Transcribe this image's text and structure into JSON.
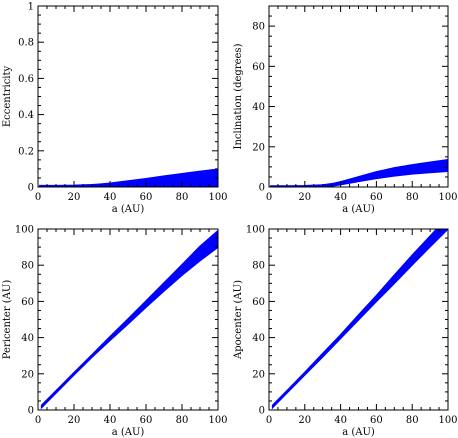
{
  "colors": {
    "band": "#0000ff",
    "axis": "#000000",
    "background": "#ffffff"
  },
  "chart_data": [
    {
      "type": "area",
      "xlabel": "a (AU)",
      "ylabel": "Eccentricity",
      "xlim": [
        0,
        100
      ],
      "ylim": [
        0,
        1
      ],
      "xticks": [
        0,
        20,
        40,
        60,
        80,
        100
      ],
      "yticks": [
        0,
        0.2,
        0.4,
        0.6,
        0.8,
        1
      ],
      "ytick_labels": [
        "0",
        "0.2",
        "0.4",
        "0.6",
        "0.8",
        "1"
      ],
      "x": [
        1,
        10,
        20,
        30,
        35,
        40,
        50,
        60,
        70,
        80,
        90,
        100
      ],
      "upper": [
        0.008,
        0.008,
        0.009,
        0.012,
        0.016,
        0.021,
        0.033,
        0.046,
        0.06,
        0.073,
        0.086,
        0.098
      ],
      "lower": [
        0,
        0,
        0,
        0,
        0,
        0,
        0,
        0,
        0,
        0,
        0,
        0
      ]
    },
    {
      "type": "area",
      "xlabel": "a (AU)",
      "ylabel": "Inclination (degrees)",
      "xlim": [
        0,
        100
      ],
      "ylim": [
        0,
        90
      ],
      "xticks": [
        0,
        20,
        40,
        60,
        80,
        100
      ],
      "yticks": [
        0,
        20,
        40,
        60,
        80
      ],
      "ytick_labels": [
        "0",
        "20",
        "40",
        "60",
        "80"
      ],
      "x": [
        1,
        10,
        20,
        30,
        35,
        40,
        50,
        60,
        70,
        80,
        90,
        100
      ],
      "upper": [
        0.5,
        0.5,
        0.6,
        1,
        1.6,
        2.6,
        5,
        7.5,
        9.5,
        11,
        12.3,
        13.5
      ],
      "lower": [
        0,
        0,
        0,
        0.1,
        0.5,
        1.2,
        2.8,
        4.3,
        5.5,
        6.5,
        7.2,
        7.8
      ]
    },
    {
      "type": "area",
      "xlabel": "a (AU)",
      "ylabel": "Pericenter (AU)",
      "xlim": [
        0,
        100
      ],
      "ylim": [
        0,
        100
      ],
      "xticks": [
        0,
        20,
        40,
        60,
        80,
        100
      ],
      "yticks": [
        0,
        20,
        40,
        60,
        80,
        100
      ],
      "ytick_labels": [
        "0",
        "20",
        "40",
        "60",
        "80",
        "100"
      ],
      "x": [
        2,
        10,
        20,
        30,
        40,
        50,
        60,
        70,
        80,
        90,
        100
      ],
      "upper": [
        2.6,
        10.6,
        20.6,
        30.5,
        40.5,
        50.3,
        60.2,
        70.2,
        80.2,
        90.4,
        99
      ],
      "lower": [
        1.4,
        9.4,
        19.4,
        29.2,
        38.5,
        47.5,
        56.8,
        65.8,
        74.5,
        82.5,
        90
      ]
    },
    {
      "type": "area",
      "xlabel": "a (AU)",
      "ylabel": "Apocenter (AU)",
      "xlim": [
        0,
        100
      ],
      "ylim": [
        0,
        100
      ],
      "xticks": [
        0,
        20,
        40,
        60,
        80,
        100
      ],
      "yticks": [
        0,
        20,
        40,
        60,
        80,
        100
      ],
      "ytick_labels": [
        "0",
        "20",
        "40",
        "60",
        "80",
        "100"
      ],
      "x": [
        2,
        10,
        20,
        30,
        40,
        50,
        60,
        70,
        80,
        90,
        100
      ],
      "upper": [
        2.6,
        10.6,
        20.8,
        31.2,
        41.5,
        52.5,
        63.2,
        74.5,
        85.5,
        96,
        107
      ],
      "lower": [
        1.4,
        9.4,
        19.4,
        29.4,
        39.6,
        49.8,
        60,
        70,
        80.2,
        90.2,
        100
      ]
    }
  ]
}
